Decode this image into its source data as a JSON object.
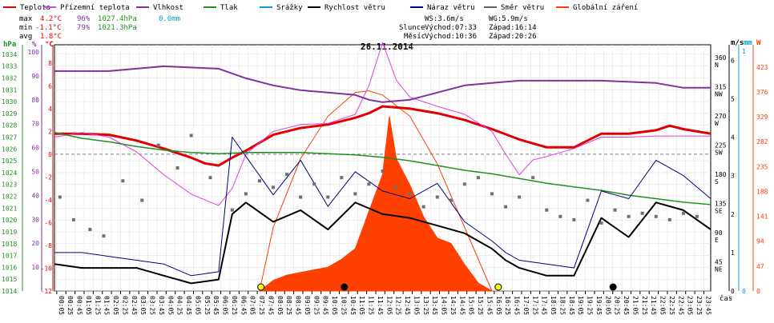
{
  "chart_data": {
    "type": "line",
    "title": "26.11.2014",
    "xlabel": "čas",
    "legend": [
      {
        "label": "Teplota",
        "color": "#e00000"
      },
      {
        "label": "Přízemní teplota",
        "color": "#e040e0"
      },
      {
        "label": "Vlhkost",
        "color": "#8030a0"
      },
      {
        "label": "Tlak",
        "color": "#209020"
      },
      {
        "label": "Srážky",
        "color": "#00a0d0"
      },
      {
        "label": "Rychlost větru",
        "color": "#000000"
      },
      {
        "label": "Náraz větru",
        "color": "#000080"
      },
      {
        "label": "Směr větru",
        "color": "#606060"
      },
      {
        "label": "Globální záření",
        "color": "#ff4000"
      }
    ],
    "stats": {
      "max": {
        "label": "max",
        "temp": "4.2°C",
        "hum": "96%",
        "press": "1027.4hPa",
        "rain": "0.0mm"
      },
      "min": {
        "label": "min",
        "temp": "-1.1°C",
        "hum": "79%",
        "press": "1021.3hPa"
      },
      "avg": {
        "label": "avg",
        "temp": "1.8°C"
      }
    },
    "wind_info": {
      "ws": "WS:3.6m/s",
      "wg": "WG:5.9m/s"
    },
    "sun_info": {
      "label": "Slunce",
      "rise": "Východ:07:33",
      "set": "Západ:16:14"
    },
    "moon_info": {
      "label": "Měsíc",
      "rise": "Východ:10:36",
      "set": "Západ:20:26"
    },
    "axes": {
      "hpa": {
        "header": "hPa",
        "color": "#209020",
        "ticks": [
          "1034",
          "1033",
          "1032",
          "1031",
          "1030",
          "1029",
          "1028",
          "1027",
          "1026",
          "1025",
          "1024",
          "1023",
          "1022",
          "1021",
          "1020",
          "1019",
          "1018",
          "1017",
          "1016",
          "1015",
          "1014"
        ]
      },
      "pct": {
        "header": "%",
        "color": "#8030a0",
        "ticks": [
          "100",
          "90",
          "80",
          "70",
          "60",
          "50",
          "40",
          "30",
          "20",
          "10"
        ]
      },
      "degc": {
        "header": "°C",
        "color": "#e00000",
        "ticks": [
          "8",
          "6",
          "4",
          "2",
          "0",
          "-2",
          "-4",
          "-6",
          "-8",
          "-10",
          "-12"
        ]
      },
      "dir": {
        "ticks": [
          {
            "deg": "360",
            "lbl": "N"
          },
          {
            "deg": "315",
            "lbl": "NW"
          },
          {
            "deg": "270",
            "lbl": "W"
          },
          {
            "deg": "225",
            "lbl": "SW"
          },
          {
            "deg": "180",
            "lbl": "S"
          },
          {
            "deg": "135",
            "lbl": "SE"
          },
          {
            "deg": "90",
            "lbl": "E"
          },
          {
            "deg": "45",
            "lbl": "NE"
          }
        ]
      },
      "ms": {
        "header": "m/s",
        "color": "#000000",
        "ticks": [
          "6",
          "5",
          "4",
          "3",
          "2",
          "1",
          "0"
        ]
      },
      "mm": {
        "header": "mm",
        "color": "#00a0d0",
        "ticks": [
          "1",
          "0"
        ]
      },
      "w": {
        "header": "W",
        "color": "#ff4000",
        "ticks": [
          "423",
          "376",
          "329",
          "282",
          "235",
          "188",
          "141",
          "94",
          "47",
          "0"
        ]
      }
    },
    "x_ticks": [
      "00:05",
      "00:25",
      "00:45",
      "01:05",
      "01:25",
      "01:45",
      "02:05",
      "02:25",
      "02:45",
      "03:05",
      "03:25",
      "03:45",
      "04:05",
      "04:25",
      "04:45",
      "05:05",
      "05:25",
      "05:45",
      "06:05",
      "06:25",
      "06:45",
      "07:05",
      "07:25",
      "07:45",
      "08:05",
      "08:25",
      "08:45",
      "09:05",
      "09:25",
      "09:45",
      "10:05",
      "10:25",
      "10:45",
      "11:05",
      "11:25",
      "11:45",
      "12:05",
      "12:25",
      "12:45",
      "13:05",
      "13:25",
      "13:45",
      "14:05",
      "14:25",
      "14:45",
      "15:05",
      "15:25",
      "15:45",
      "16:05",
      "16:25",
      "16:45",
      "17:05",
      "17:25",
      "17:45",
      "18:05",
      "18:25",
      "18:45",
      "19:05",
      "19:25",
      "19:45",
      "20:05",
      "20:25",
      "20:45",
      "21:05",
      "21:25",
      "21:45",
      "22:05",
      "22:25",
      "22:45",
      "23:05",
      "23:25",
      "23:45"
    ],
    "series": [
      {
        "name": "Teplota",
        "unit": "°C",
        "x": [
          0,
          1,
          2,
          3,
          4,
          5,
          5.5,
          6,
          6.5,
          7,
          7.5,
          8,
          9,
          10,
          11,
          11.5,
          12,
          13,
          14,
          15,
          16,
          17,
          18,
          19,
          20,
          21,
          22,
          22.5,
          23,
          24
        ],
        "values": [
          1.8,
          1.8,
          1.7,
          1.2,
          0.5,
          -0.3,
          -0.8,
          -1.0,
          -0.3,
          0.3,
          1.0,
          1.7,
          2.3,
          2.6,
          3.2,
          3.6,
          4.2,
          4.0,
          3.6,
          3.0,
          2.2,
          1.3,
          0.6,
          0.6,
          1.8,
          1.8,
          2.1,
          2.5,
          2.2,
          1.8
        ]
      },
      {
        "name": "Přízemní teplota",
        "unit": "°C",
        "x": [
          0,
          1,
          2,
          3,
          4,
          5,
          6,
          6.5,
          7,
          8,
          9,
          10,
          11,
          11.5,
          12,
          12.5,
          13,
          14,
          15,
          16,
          16.5,
          17,
          17.5,
          18,
          19,
          20,
          21,
          22,
          23,
          24
        ],
        "values": [
          1.5,
          1.9,
          1.5,
          0.2,
          -1.8,
          -3.5,
          -4.5,
          -3.0,
          0.0,
          2.0,
          2.6,
          2.7,
          3.5,
          6.0,
          9.8,
          6.5,
          5.0,
          4.2,
          3.5,
          2.0,
          0.0,
          -1.8,
          -0.5,
          -0.2,
          0.5,
          1.5,
          1.5,
          1.6,
          1.6,
          1.6
        ]
      },
      {
        "name": "Vlhkost",
        "unit": "%",
        "x": [
          0,
          2,
          4,
          6,
          7,
          8,
          9,
          10,
          11,
          11.5,
          12,
          13,
          14,
          15,
          16,
          17,
          18,
          19,
          20,
          22,
          23,
          24
        ],
        "values": [
          92,
          92,
          94,
          93,
          89,
          86,
          84,
          83,
          82,
          80,
          79,
          80,
          83,
          86,
          87,
          88,
          88,
          88,
          88,
          87,
          85,
          85
        ]
      },
      {
        "name": "Tlak",
        "unit": "hPa",
        "x": [
          0,
          1,
          2,
          3,
          4,
          5,
          6,
          7,
          8,
          9,
          10,
          11,
          12,
          13,
          14,
          15,
          16,
          17,
          18,
          19,
          20,
          21,
          22,
          23,
          24
        ],
        "values": [
          1027.4,
          1026.9,
          1026.6,
          1026.2,
          1025.9,
          1025.7,
          1025.6,
          1025.7,
          1025.7,
          1025.7,
          1025.6,
          1025.5,
          1025.3,
          1025.0,
          1024.6,
          1024.2,
          1023.9,
          1023.5,
          1023.1,
          1022.8,
          1022.5,
          1022.1,
          1021.8,
          1021.5,
          1021.3
        ]
      },
      {
        "name": "Rychlost větru",
        "unit": "m/s",
        "x": [
          0,
          1,
          2,
          3,
          4,
          5,
          6,
          6.5,
          7,
          8,
          9,
          10,
          11,
          12,
          13,
          14,
          15,
          16,
          16.5,
          17,
          18,
          19,
          20,
          21,
          22,
          23,
          24
        ],
        "values": [
          0.7,
          0.6,
          0.6,
          0.6,
          0.4,
          0.2,
          0.3,
          2.0,
          2.3,
          1.8,
          2.1,
          1.6,
          2.3,
          2.0,
          1.9,
          1.7,
          1.5,
          1.1,
          0.8,
          0.6,
          0.4,
          0.4,
          1.9,
          1.4,
          2.3,
          2.1,
          1.6
        ]
      },
      {
        "name": "Náraz větru",
        "unit": "m/s",
        "x": [
          0,
          1,
          2,
          3,
          4,
          5,
          6,
          6.5,
          7,
          8,
          9,
          10,
          11,
          12,
          13,
          14,
          15,
          16,
          16.5,
          17,
          18,
          19,
          20,
          21,
          22,
          23,
          24
        ],
        "values": [
          1.0,
          1.0,
          0.9,
          0.8,
          0.7,
          0.4,
          0.5,
          4.0,
          3.5,
          2.5,
          3.4,
          2.2,
          3.1,
          2.6,
          2.4,
          2.8,
          1.8,
          1.3,
          1.0,
          0.8,
          0.7,
          0.6,
          2.6,
          2.4,
          3.4,
          3.0,
          2.4
        ]
      },
      {
        "name": "Směr větru",
        "unit": "°",
        "x": [
          0.2,
          0.7,
          1.3,
          1.8,
          2.5,
          3.2,
          3.8,
          4.5,
          5.0,
          5.7,
          6.5,
          7.0,
          7.5,
          8.0,
          8.5,
          9.0,
          9.5,
          10.0,
          10.5,
          11.0,
          11.5,
          12.0,
          12.5,
          13.0,
          13.5,
          14.0,
          14.5,
          15.0,
          15.5,
          16.0,
          16.5,
          17.0,
          17.5,
          18.0,
          18.5,
          19.0,
          19.5,
          20.0,
          20.5,
          21.0,
          21.5,
          22.0,
          22.5,
          23.0,
          23.5
        ],
        "values": [
          145,
          110,
          95,
          85,
          170,
          140,
          225,
          190,
          240,
          175,
          125,
          150,
          170,
          160,
          180,
          145,
          165,
          145,
          175,
          150,
          165,
          185,
          160,
          150,
          130,
          145,
          140,
          165,
          175,
          150,
          130,
          145,
          175,
          125,
          115,
          110,
          140,
          105,
          125,
          115,
          120,
          115,
          110,
          120,
          115
        ]
      },
      {
        "name": "Globální záření",
        "unit": "W",
        "x": [
          7.5,
          8,
          8.5,
          9,
          9.5,
          10,
          10.5,
          11,
          11.5,
          12,
          12.25,
          12.5,
          13,
          13.5,
          14,
          14.5,
          15,
          15.5,
          16
        ],
        "values": [
          0,
          20,
          30,
          35,
          40,
          45,
          60,
          80,
          150,
          220,
          330,
          250,
          200,
          140,
          100,
          90,
          50,
          15,
          0
        ]
      },
      {
        "name": "Globální záření (teoretické)",
        "unit": "W",
        "x": [
          7.5,
          8,
          9,
          10,
          11,
          11.5,
          12,
          13,
          14,
          15,
          16
        ],
        "values": [
          0,
          120,
          250,
          330,
          375,
          378,
          370,
          330,
          240,
          120,
          0
        ]
      }
    ],
    "events": [
      {
        "name": "Slunce východ",
        "x": 7.55
      },
      {
        "name": "Měsíc východ",
        "x": 10.6
      },
      {
        "name": "Slunce západ",
        "x": 16.23
      },
      {
        "name": "Měsíc západ",
        "x": 20.43
      }
    ]
  }
}
